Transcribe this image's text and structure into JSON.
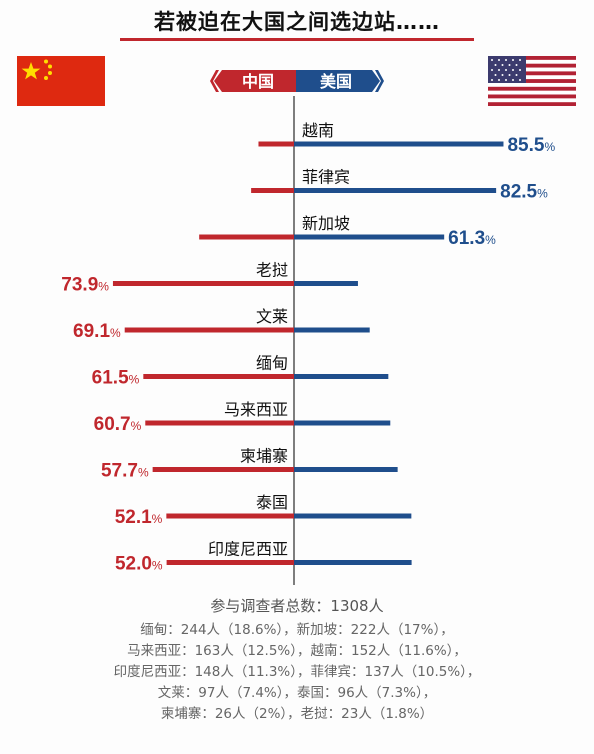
{
  "title": "若被迫在大国之间选边站……",
  "legend": {
    "left": "中国",
    "right": "美国"
  },
  "colors": {
    "china": "#c0272d",
    "usa": "#1f4e8c",
    "axis": "#555555"
  },
  "chart_data": {
    "type": "bar",
    "orientation": "diverging-horizontal",
    "categories": [
      "越南",
      "菲律宾",
      "新加坡",
      "老挝",
      "文莱",
      "缅甸",
      "马来西亚",
      "柬埔寨",
      "泰国",
      "印度尼西亚"
    ],
    "series": [
      {
        "name": "中国",
        "side": "left",
        "values": [
          14.5,
          17.5,
          38.7,
          73.9,
          69.1,
          61.5,
          60.7,
          57.7,
          52.1,
          52.0
        ]
      },
      {
        "name": "美国",
        "side": "right",
        "values": [
          85.5,
          82.5,
          61.3,
          26.1,
          30.9,
          38.5,
          39.3,
          42.3,
          47.9,
          48.0
        ]
      }
    ],
    "labels": [
      {
        "side": "right",
        "value": "85.5",
        "unit": "%"
      },
      {
        "side": "right",
        "value": "82.5",
        "unit": "%"
      },
      {
        "side": "right",
        "value": "61.3",
        "unit": "%"
      },
      {
        "side": "left",
        "value": "73.9",
        "unit": "%"
      },
      {
        "side": "left",
        "value": "69.1",
        "unit": "%"
      },
      {
        "side": "left",
        "value": "61.5",
        "unit": "%"
      },
      {
        "side": "left",
        "value": "60.7",
        "unit": "%"
      },
      {
        "side": "left",
        "value": "57.7",
        "unit": "%"
      },
      {
        "side": "left",
        "value": "52.1",
        "unit": "%"
      },
      {
        "side": "left",
        "value": "52.0",
        "unit": "%"
      }
    ],
    "xlim": [
      0,
      100
    ]
  },
  "footer": {
    "total": "参与调查者总数：1308人",
    "lines": [
      "缅甸：244人（18.6%），新加坡：222人（17%），",
      "马来西亚：163人（12.5%），越南：152人（11.6%），",
      "印度尼西亚：148人（11.3%），菲律宾：137人（10.5%），",
      "文莱：97人（7.4%），泰国：96人（7.3%），",
      "柬埔寨：26人（2%），老挝：23人（1.8%）"
    ]
  }
}
